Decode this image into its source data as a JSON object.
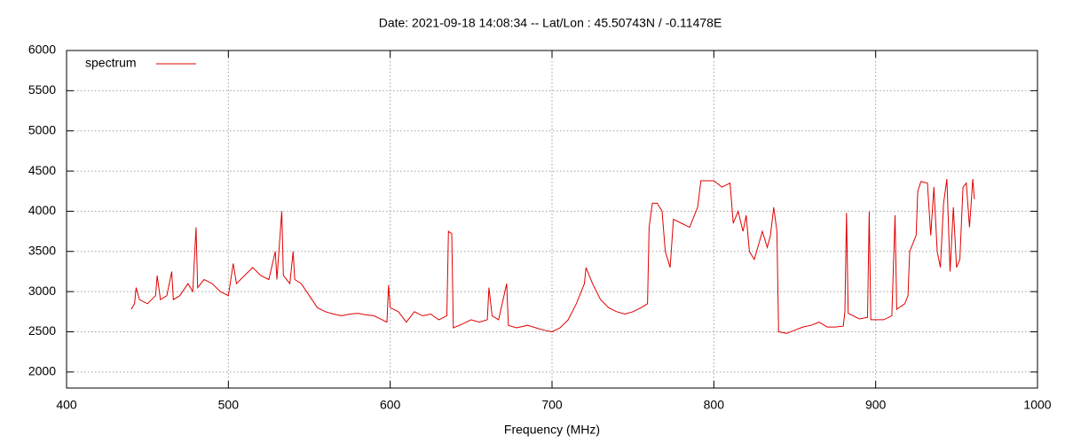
{
  "chart_data": {
    "type": "line",
    "title": "Date: 2021-09-18 14:08:34  --  Lat/Lon : 45.50743N / -0.11478E",
    "x_label": "Frequency (MHz)",
    "xlim": [
      400,
      1000
    ],
    "xticks": [
      400,
      500,
      600,
      700,
      800,
      900,
      1000
    ],
    "ylim": [
      1800,
      6000
    ],
    "yticks": [
      2000,
      2500,
      3000,
      3500,
      4000,
      4500,
      5000,
      5500,
      6000
    ],
    "grid": true,
    "legend": "top-left",
    "series": [
      {
        "name": "spectrum",
        "color": "#e00000",
        "x": [
          440,
          442,
          443,
          445,
          450,
          455,
          456,
          458,
          462,
          465,
          466,
          470,
          475,
          478,
          480,
          481,
          485,
          490,
          495,
          500,
          503,
          505,
          510,
          515,
          520,
          525,
          529,
          530,
          533,
          534,
          538,
          540,
          541,
          545,
          550,
          555,
          560,
          565,
          570,
          575,
          580,
          585,
          590,
          595,
          598,
          599,
          600,
          605,
          610,
          615,
          620,
          625,
          630,
          635,
          636,
          638,
          639,
          645,
          650,
          655,
          660,
          661,
          663,
          667,
          672,
          673,
          678,
          685,
          690,
          695,
          700,
          705,
          710,
          715,
          720,
          721,
          725,
          730,
          735,
          740,
          745,
          750,
          755,
          759,
          760,
          762,
          765,
          768,
          770,
          773,
          775,
          780,
          785,
          790,
          792,
          800,
          805,
          810,
          812,
          815,
          818,
          820,
          822,
          825,
          830,
          833,
          835,
          837,
          839,
          840,
          845,
          850,
          855,
          860,
          865,
          870,
          875,
          880,
          881,
          882,
          883,
          890,
          895,
          896,
          897,
          905,
          910,
          912,
          913,
          918,
          920,
          921,
          925,
          926,
          928,
          932,
          934,
          936,
          938,
          940,
          942,
          944,
          946,
          948,
          950,
          952,
          954,
          956,
          958,
          960,
          961
        ],
        "values": [
          2780,
          2850,
          3050,
          2900,
          2850,
          2950,
          3200,
          2900,
          2950,
          3250,
          2900,
          2950,
          3100,
          3000,
          3800,
          3050,
          3150,
          3100,
          3000,
          2950,
          3350,
          3100,
          3200,
          3300,
          3200,
          3150,
          3500,
          3150,
          4000,
          3200,
          3100,
          3500,
          3150,
          3100,
          2950,
          2800,
          2750,
          2720,
          2700,
          2720,
          2730,
          2710,
          2700,
          2650,
          2620,
          3080,
          2800,
          2750,
          2620,
          2750,
          2700,
          2720,
          2650,
          2700,
          3750,
          3720,
          2550,
          2600,
          2650,
          2620,
          2650,
          3050,
          2700,
          2650,
          3100,
          2580,
          2550,
          2580,
          2550,
          2520,
          2500,
          2550,
          2650,
          2850,
          3100,
          3300,
          3100,
          2900,
          2800,
          2750,
          2720,
          2750,
          2800,
          2850,
          3800,
          4100,
          4100,
          4000,
          3500,
          3300,
          3900,
          3850,
          3800,
          4050,
          4380,
          4380,
          4300,
          4350,
          3850,
          4000,
          3750,
          3950,
          3500,
          3400,
          3750,
          3550,
          3700,
          4050,
          3750,
          2500,
          2480,
          2520,
          2560,
          2580,
          2620,
          2560,
          2560,
          2570,
          2750,
          3980,
          2730,
          2660,
          2680,
          4000,
          2650,
          2650,
          2700,
          3950,
          2780,
          2850,
          2950,
          3500,
          3700,
          4250,
          4370,
          4350,
          3700,
          4300,
          3500,
          3300,
          4100,
          4400,
          3250,
          4050,
          3300,
          3400,
          4300,
          4350,
          3800,
          4400,
          4150
        ]
      }
    ]
  }
}
